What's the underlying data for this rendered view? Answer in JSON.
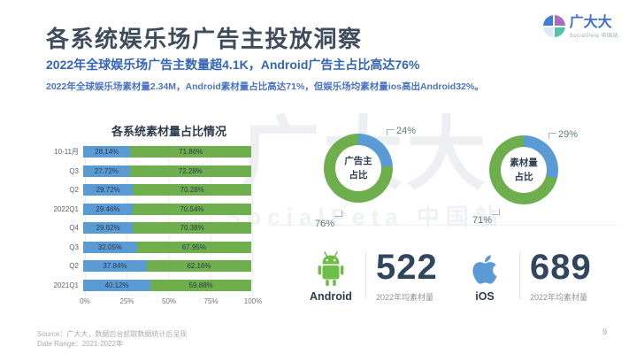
{
  "slide": {
    "title": "各系统娱乐场广告主投放洞察",
    "subtitle": "2022年全球娱乐场广告主数量超4.1K，Android广告主占比高达76%",
    "description": "2022年全球娱乐场素材量2.34M，Android素材量占比高达71%，但娱乐场均素材量ios高出Android32%。",
    "page_number": "9"
  },
  "logo": {
    "name": "广大大",
    "subname": "SocialPeta 中国站"
  },
  "watermark": {
    "line1": "广大大",
    "line2": "SocialPeta 中国站"
  },
  "colors": {
    "bar_blue": "#5b9bd5",
    "bar_green": "#6fae4c",
    "android_green": "#6cbe45",
    "ios_blue": "#5b9bd5",
    "heading_blue": "#3565b5",
    "dark_navy": "#32455f"
  },
  "chart_data": [
    {
      "type": "bar",
      "orientation": "horizontal",
      "stacked": true,
      "title": "各系统素材量占比情况",
      "categories": [
        "10-11月",
        "Q3",
        "Q2",
        "2022Q1",
        "Q4",
        "Q3",
        "Q2",
        "2021Q1"
      ],
      "series": [
        {
          "name": "iOS",
          "color": "#5b9bd5",
          "values": [
            28.14,
            27.72,
            29.72,
            29.46,
            29.62,
            32.05,
            37.84,
            40.12
          ]
        },
        {
          "name": "Android",
          "color": "#6fae4c",
          "values": [
            71.86,
            72.28,
            70.28,
            70.54,
            70.38,
            67.95,
            62.16,
            59.88
          ]
        }
      ],
      "x_ticks": [
        "0%",
        "25%",
        "50%",
        "75%",
        "100%"
      ],
      "xlim": [
        0,
        100
      ],
      "grid": true,
      "legend": "none"
    },
    {
      "type": "pie",
      "title": "广告主占比",
      "center_label": [
        "广告主",
        "占比"
      ],
      "slices": [
        {
          "label": "24%",
          "value": 24,
          "color": "#5b9bd5"
        },
        {
          "label": "76%",
          "value": 76,
          "color": "#6fae4c"
        }
      ]
    },
    {
      "type": "pie",
      "title": "素材量占比",
      "center_label": [
        "素材量",
        "占比"
      ],
      "slices": [
        {
          "label": "29%",
          "value": 29,
          "color": "#5b9bd5"
        },
        {
          "label": "71%",
          "value": 71,
          "color": "#6fae4c"
        }
      ]
    }
  ],
  "stats": [
    {
      "platform": "Android",
      "value": "522",
      "caption": "2022年均素材量"
    },
    {
      "platform": "iOS",
      "value": "689",
      "caption": "2022年均素材量"
    }
  ],
  "footer": {
    "source": "Source：广大大，数据后台抓取数据统计后呈现",
    "date_range": "Date Range：2021-2022年"
  }
}
